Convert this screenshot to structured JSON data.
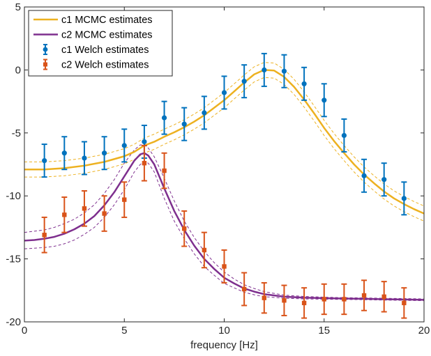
{
  "chart_data": {
    "type": "line",
    "title": "",
    "xlabel": "frequency [Hz]",
    "ylabel": "",
    "xlim": [
      0,
      20
    ],
    "ylim": [
      -20,
      5
    ],
    "xticks": [
      0,
      5,
      10,
      15,
      20
    ],
    "yticks": [
      -20,
      -15,
      -10,
      -5,
      0,
      5
    ],
    "grid": false,
    "legend_position": "top-left",
    "series": [
      {
        "name": "c1 MCMC estimates",
        "style": "line",
        "color": "#EDB120",
        "x": [
          0,
          1,
          2,
          3,
          4,
          5,
          5.5,
          6,
          6.5,
          7,
          7.5,
          8,
          8.5,
          9,
          9.5,
          10,
          10.5,
          11,
          11.5,
          12,
          12.5,
          13,
          13.5,
          14,
          14.5,
          15,
          15.5,
          16,
          16.5,
          17,
          17.5,
          18,
          18.5,
          19,
          19.5,
          20
        ],
        "y": [
          -7.9,
          -7.9,
          -7.8,
          -7.6,
          -7.3,
          -6.85,
          -6.5,
          -6.0,
          -5.7,
          -5.3,
          -4.95,
          -4.55,
          -4.1,
          -3.6,
          -3.0,
          -2.4,
          -1.7,
          -1.0,
          -0.35,
          0.0,
          -0.05,
          -0.55,
          -1.35,
          -2.35,
          -3.45,
          -4.6,
          -5.65,
          -6.6,
          -7.5,
          -8.3,
          -9.0,
          -9.65,
          -10.2,
          -10.65,
          -11.05,
          -11.4
        ],
        "band_upper": [
          -7.3,
          -7.3,
          -7.2,
          -7.0,
          -6.7,
          -6.25,
          -5.9,
          -5.4,
          -5.1,
          -4.7,
          -4.35,
          -3.95,
          -3.5,
          -3.0,
          -2.4,
          -1.8,
          -1.1,
          -0.4,
          0.25,
          0.6,
          0.55,
          0.05,
          -0.75,
          -1.75,
          -2.85,
          -4.0,
          -5.05,
          -6.0,
          -6.9,
          -7.7,
          -8.4,
          -9.05,
          -9.6,
          -10.05,
          -10.45,
          -10.8
        ],
        "band_lower": [
          -8.5,
          -8.5,
          -8.4,
          -8.2,
          -7.9,
          -7.45,
          -7.1,
          -6.6,
          -6.3,
          -5.9,
          -5.55,
          -5.15,
          -4.7,
          -4.2,
          -3.6,
          -3.0,
          -2.3,
          -1.6,
          -0.95,
          -0.6,
          -0.65,
          -1.15,
          -1.95,
          -2.95,
          -4.05,
          -5.2,
          -6.25,
          -7.2,
          -8.1,
          -8.9,
          -9.6,
          -10.25,
          -10.8,
          -11.25,
          -11.65,
          -12.0
        ]
      },
      {
        "name": "c2 MCMC estimates",
        "style": "line",
        "color": "#7E2F8E",
        "x": [
          0,
          0.5,
          1,
          1.5,
          2,
          2.5,
          3,
          3.5,
          4,
          4.5,
          5,
          5.5,
          5.8,
          6,
          6.2,
          6.5,
          7,
          7.5,
          8,
          8.5,
          9,
          9.5,
          10,
          10.5,
          11,
          11.5,
          12,
          13,
          14,
          15,
          16,
          17,
          18,
          19,
          20
        ],
        "y": [
          -13.55,
          -13.5,
          -13.4,
          -13.25,
          -13.0,
          -12.65,
          -12.2,
          -11.6,
          -10.75,
          -9.7,
          -8.45,
          -7.2,
          -6.7,
          -6.6,
          -6.8,
          -7.5,
          -9.4,
          -11.2,
          -12.7,
          -13.95,
          -15.0,
          -15.8,
          -16.5,
          -16.95,
          -17.35,
          -17.6,
          -17.8,
          -18.0,
          -18.08,
          -18.12,
          -18.15,
          -18.17,
          -18.2,
          -18.22,
          -18.25
        ],
        "band_upper": [
          -12.9,
          -12.8,
          -12.7,
          -12.5,
          -12.2,
          -11.85,
          -11.35,
          -10.7,
          -9.8,
          -8.7,
          -7.4,
          -6.35,
          -5.95,
          -5.95,
          -6.2,
          -6.9,
          -8.6,
          -10.4,
          -12.0,
          -13.3,
          -14.4,
          -15.3,
          -16.05,
          -16.6,
          -17.05,
          -17.35,
          -17.6,
          -17.88,
          -17.98,
          -18.04,
          -18.08,
          -18.1,
          -18.13,
          -18.15,
          -18.18
        ],
        "band_lower": [
          -14.2,
          -14.15,
          -14.1,
          -14.0,
          -13.8,
          -13.5,
          -13.05,
          -12.5,
          -11.7,
          -10.7,
          -9.5,
          -8.1,
          -7.5,
          -7.3,
          -7.4,
          -8.1,
          -10.2,
          -12.0,
          -13.4,
          -14.6,
          -15.6,
          -16.3,
          -16.95,
          -17.3,
          -17.65,
          -17.85,
          -18.0,
          -18.12,
          -18.18,
          -18.2,
          -18.22,
          -18.24,
          -18.27,
          -18.29,
          -18.32
        ]
      },
      {
        "name": "c1 Welch estimates",
        "style": "errorbar",
        "color": "#0072BD",
        "marker": "circle",
        "x": [
          1,
          2,
          3,
          4,
          5,
          6,
          7,
          8,
          9,
          10,
          11,
          12,
          13,
          14,
          15,
          16,
          17,
          18,
          19
        ],
        "y": [
          -7.2,
          -6.6,
          -7.0,
          -6.6,
          -6.0,
          -5.7,
          -3.8,
          -4.3,
          -3.4,
          -1.8,
          -0.9,
          0.0,
          -0.1,
          -1.1,
          -2.4,
          -5.2,
          -8.4,
          -8.7,
          -10.2
        ],
        "err": [
          1.3,
          1.3,
          1.3,
          1.3,
          1.3,
          1.3,
          1.3,
          1.3,
          1.3,
          1.3,
          1.3,
          1.3,
          1.3,
          1.3,
          1.3,
          1.3,
          1.3,
          1.3,
          1.3
        ]
      },
      {
        "name": "c2 Welch estimates",
        "style": "errorbar",
        "color": "#D95319",
        "marker": "square",
        "x": [
          1,
          2,
          3,
          4,
          5,
          6,
          7,
          8,
          9,
          10,
          11,
          12,
          13,
          14,
          15,
          16,
          17,
          18,
          19
        ],
        "y": [
          -13.1,
          -11.5,
          -11.0,
          -11.4,
          -10.3,
          -7.4,
          -8.0,
          -12.6,
          -14.3,
          -15.6,
          -17.4,
          -18.1,
          -18.3,
          -18.5,
          -18.2,
          -18.2,
          -17.9,
          -18.0,
          -18.5
        ],
        "err": [
          1.4,
          1.4,
          1.4,
          1.4,
          1.4,
          1.4,
          1.4,
          1.4,
          1.4,
          1.3,
          1.3,
          1.2,
          1.2,
          1.2,
          1.2,
          1.2,
          1.2,
          1.2,
          1.2
        ]
      }
    ]
  }
}
